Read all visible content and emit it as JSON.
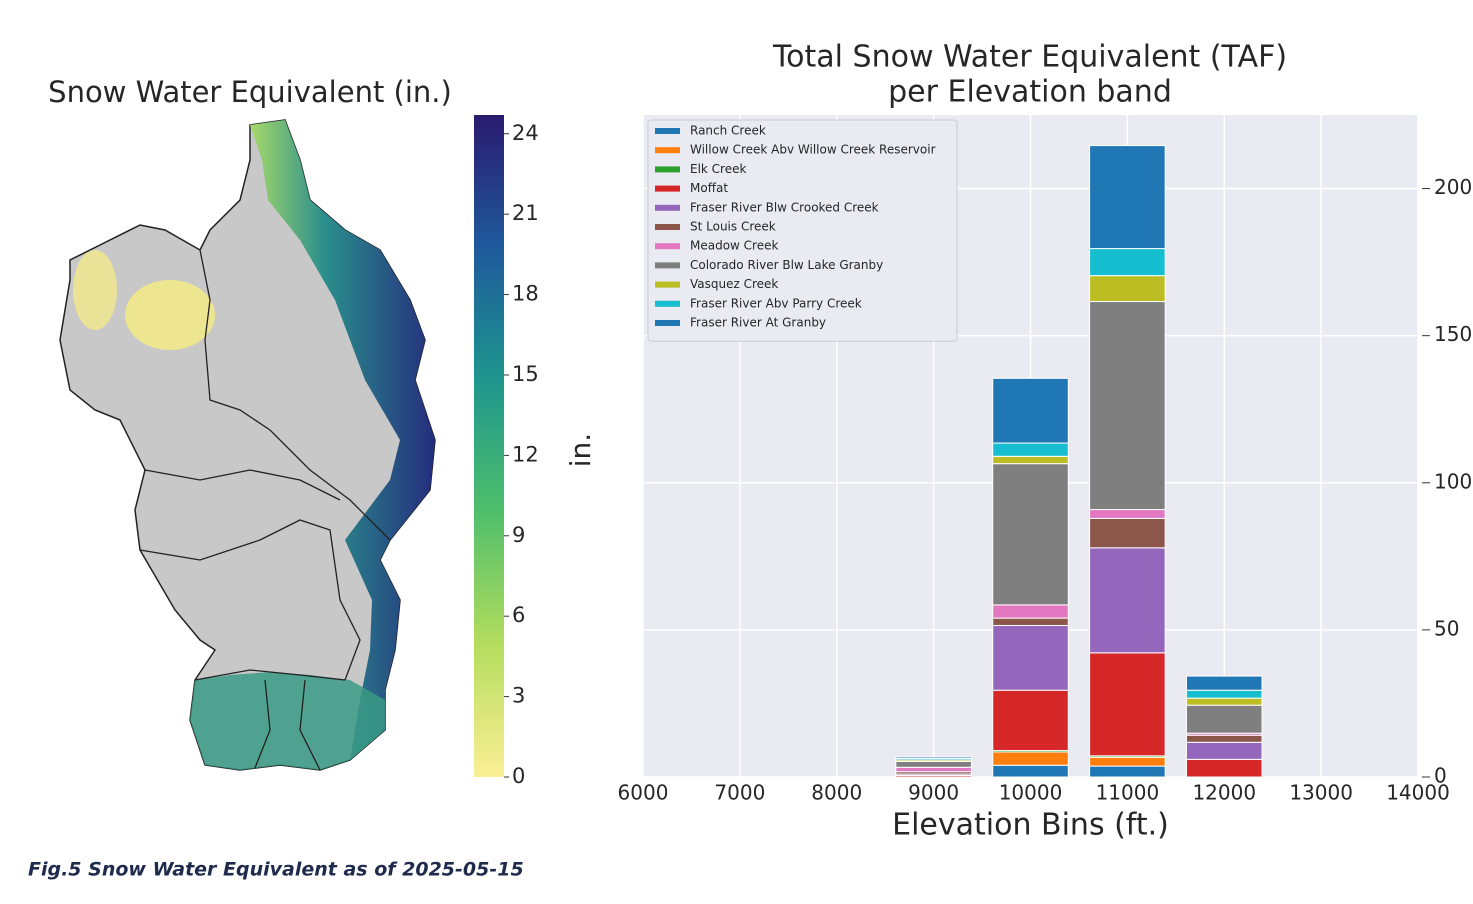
{
  "map": {
    "title": "Snow Water Equivalent (in.)",
    "colorbar": {
      "lim": [
        0,
        24.7
      ],
      "ticks": [
        0,
        3,
        6,
        9,
        12,
        15,
        18,
        21,
        24
      ]
    }
  },
  "chart_data": {
    "type": "stacked_bar",
    "title": [
      "Total Snow Water Equivalent (TAF)",
      "per Elevation band"
    ],
    "x_label": "Elevation Bins (ft.)",
    "y_label": "in.",
    "x": [
      9000,
      10000,
      11000,
      12000
    ],
    "xlim": [
      6000,
      14000
    ],
    "xticks": [
      6000,
      7000,
      8000,
      9000,
      10000,
      11000,
      12000,
      13000,
      14000
    ],
    "ylim": [
      0,
      225
    ],
    "yticks": [
      0,
      50,
      100,
      150,
      200
    ],
    "y_axis_side": "right",
    "grid": true,
    "legend": "upper left",
    "series": [
      {
        "name": "Ranch Creek",
        "color": "#1f77b4",
        "values": [
          0,
          4,
          3.7,
          0
        ]
      },
      {
        "name": "Willow Creek Abv Willow Creek Reservoir",
        "color": "#ff7f0e",
        "values": [
          0,
          4.5,
          3,
          0
        ]
      },
      {
        "name": "Elk Creek",
        "color": "#2ca02c",
        "values": [
          0,
          0.5,
          0.5,
          0
        ]
      },
      {
        "name": "Moffat",
        "color": "#d62728",
        "values": [
          0.5,
          20.5,
          35,
          6
        ]
      },
      {
        "name": "Fraser River Blw Crooked Creek",
        "color": "#9467bd",
        "values": [
          0.5,
          22,
          35.7,
          5.8
        ]
      },
      {
        "name": "St Louis Creek",
        "color": "#8c564b",
        "values": [
          0.8,
          2.5,
          10,
          2.4
        ]
      },
      {
        "name": "Meadow Creek",
        "color": "#e377c2",
        "values": [
          1.5,
          4.5,
          3,
          0.7
        ]
      },
      {
        "name": "Colorado River Blw Lake Granby",
        "color": "#7f7f7f",
        "values": [
          2,
          48,
          70.7,
          9.5
        ]
      },
      {
        "name": "Vasquez Creek",
        "color": "#bcbd22",
        "values": [
          0.5,
          2.5,
          8.8,
          2.4
        ]
      },
      {
        "name": "Fraser River Abv Parry Creek",
        "color": "#17becf",
        "values": [
          0.5,
          4.5,
          9.2,
          2.7
        ]
      },
      {
        "name": "Fraser River At Granby",
        "color": "#1f77b4",
        "values": [
          0.5,
          22,
          35,
          4.8
        ]
      }
    ]
  },
  "caption": "Fig.5 Snow Water Equivalent as of 2025-05-15"
}
